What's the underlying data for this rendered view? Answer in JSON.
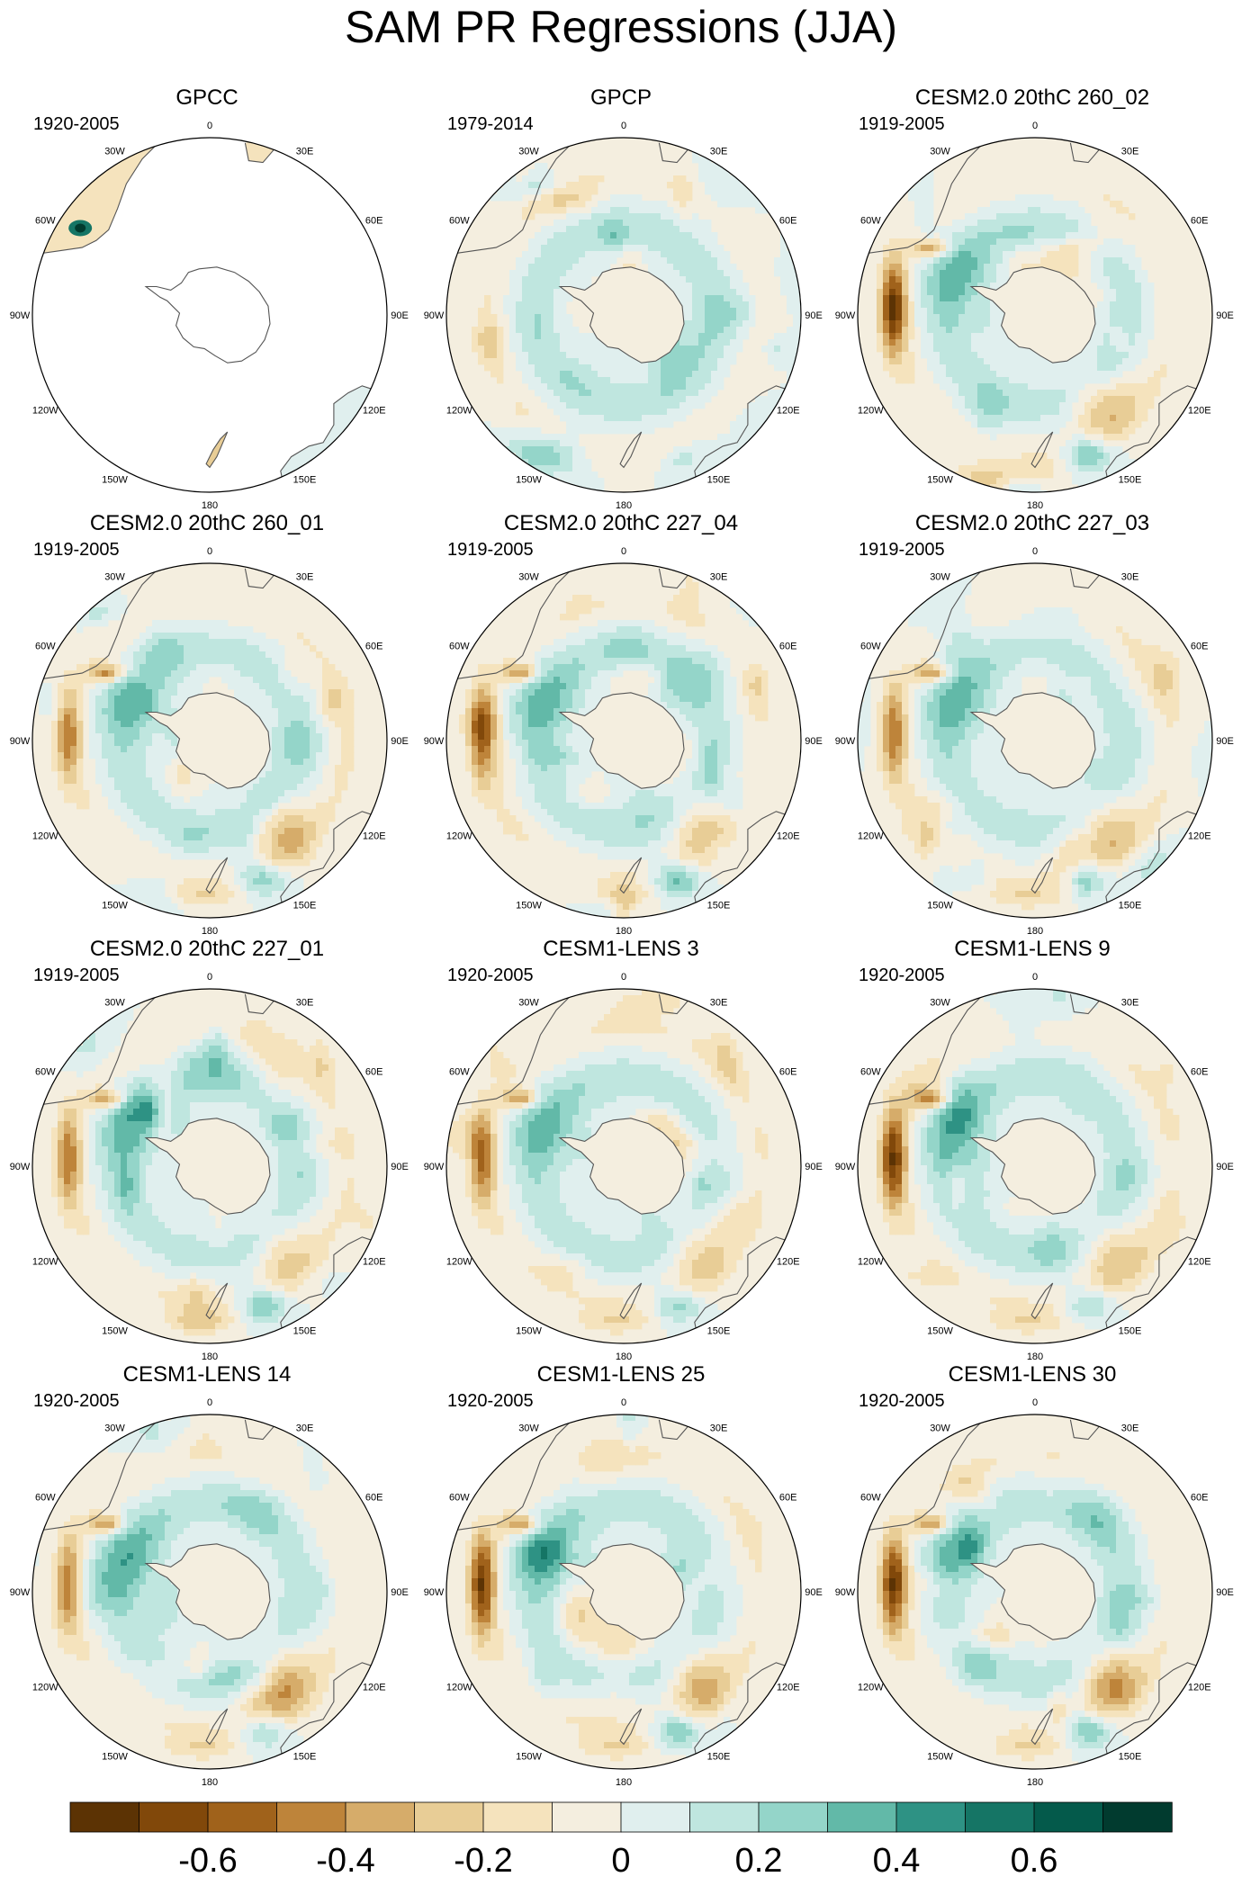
{
  "title": "SAM PR Regressions (JJA)",
  "panels": [
    {
      "title": "GPCC",
      "years": "1920-2005",
      "mode": "gpcc"
    },
    {
      "title": "GPCP",
      "years": "1979-2014",
      "mode": "obs"
    },
    {
      "title": "CESM2.0 20thC 260_02",
      "years": "1919-2005",
      "mode": "model"
    },
    {
      "title": "CESM2.0 20thC 260_01",
      "years": "1919-2005",
      "mode": "model"
    },
    {
      "title": "CESM2.0 20thC 227_04",
      "years": "1919-2005",
      "mode": "model"
    },
    {
      "title": "CESM2.0 20thC 227_03",
      "years": "1919-2005",
      "mode": "model"
    },
    {
      "title": "CESM2.0 20thC 227_01",
      "years": "1919-2005",
      "mode": "model"
    },
    {
      "title": "CESM1-LENS 3",
      "years": "1920-2005",
      "mode": "model"
    },
    {
      "title": "CESM1-LENS 9",
      "years": "1920-2005",
      "mode": "model"
    },
    {
      "title": "CESM1-LENS 14",
      "years": "1920-2005",
      "mode": "model"
    },
    {
      "title": "CESM1-LENS 25",
      "years": "1920-2005",
      "mode": "model"
    },
    {
      "title": "CESM1-LENS 30",
      "years": "1920-2005",
      "mode": "model"
    }
  ],
  "lon_labels": [
    "0",
    "30E",
    "60E",
    "90E",
    "120E",
    "150E",
    "180",
    "150W",
    "120W",
    "90W",
    "60W",
    "30W"
  ],
  "colorbar": {
    "colors": [
      "#5c3304",
      "#81480a",
      "#a0621b",
      "#be843a",
      "#d6ac6a",
      "#e8cd96",
      "#f5e3bd",
      "#f4eedf",
      "#e0efee",
      "#bfe6df",
      "#94d5c9",
      "#62b9a8",
      "#2e9284",
      "#157565",
      "#045a4b",
      "#013b2f"
    ],
    "tick_labels": [
      "-0.6",
      "-0.4",
      "-0.2",
      "0",
      "0.2",
      "0.4",
      "0.6"
    ],
    "tick_values": [
      -0.6,
      -0.4,
      -0.2,
      0,
      0.2,
      0.4,
      0.6
    ],
    "range": [
      -0.8,
      0.8
    ]
  }
}
